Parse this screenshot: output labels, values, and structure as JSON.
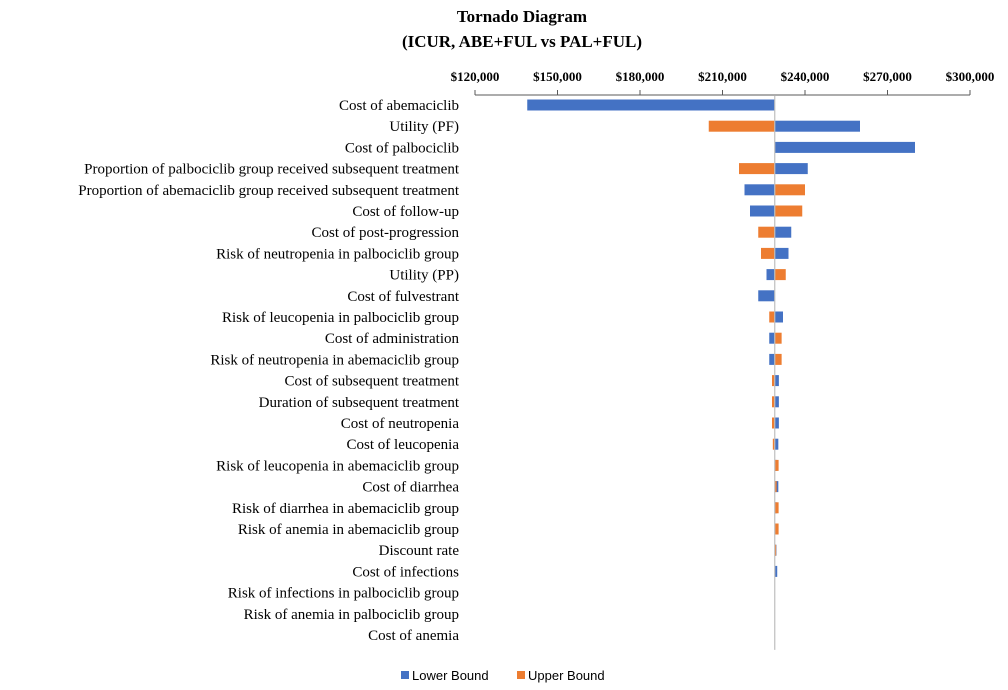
{
  "chart_data": {
    "type": "bar",
    "orientation": "horizontal-tornado",
    "title": [
      "Tornado Diagram",
      "(ICUR, ABE+FUL vs PAL+FUL)"
    ],
    "x_ticks": [
      "$120,000",
      "$150,000",
      "$180,000",
      "$210,000",
      "$240,000",
      "$270,000",
      "$300,000"
    ],
    "xlim": [
      120000,
      300000
    ],
    "base_value": 229000,
    "colors": {
      "lower": "#4472C4",
      "upper": "#ED7D31",
      "axis": "#BFBFBF"
    },
    "legend": [
      "Lower Bound",
      "Upper Bound"
    ],
    "categories": [
      "Cost of abemaciclib",
      "Utility (PF)",
      "Cost of palbociclib",
      "Proportion of palbociclib group received subsequent treatment",
      "Proportion of abemaciclib group received subsequent treatment",
      "Cost of follow-up",
      "Cost of post-progression",
      "Risk of neutropenia in palbociclib group",
      "Utility (PP)",
      "Cost of fulvestrant",
      "Risk of leucopenia in palbociclib group",
      "Cost of administration",
      "Risk of neutropenia in abemaciclib group",
      "Cost of subsequent treatment",
      "Duration of subsequent treatment",
      "Cost of neutropenia",
      "Cost of leucopenia",
      "Risk of leucopenia in abemaciclib group",
      "Cost of diarrhea",
      "Risk of diarrhea in abemaciclib group",
      "Risk of anemia in abemaciclib group",
      "Discount rate",
      "Cost of infections",
      "Risk of infections in palbociclib group",
      "Risk of anemia in palbociclib group",
      "Cost of anemia"
    ],
    "series": [
      {
        "name": "Lower Bound",
        "values": [
          139000,
          260000,
          280000,
          241000,
          218000,
          220000,
          235000,
          234000,
          226000,
          223000,
          232000,
          227000,
          227000,
          230500,
          230500,
          230500,
          230300,
          229700,
          230300,
          229700,
          229700,
          229600,
          229900,
          229000,
          229000,
          229000
        ]
      },
      {
        "name": "Upper Bound",
        "values": [
          null,
          205000,
          null,
          216000,
          240000,
          239000,
          223000,
          224000,
          233000,
          null,
          227000,
          231500,
          231500,
          228000,
          228000,
          228000,
          228300,
          230400,
          229700,
          230400,
          230400,
          229500,
          229000,
          229000,
          229000,
          229000
        ]
      }
    ]
  }
}
